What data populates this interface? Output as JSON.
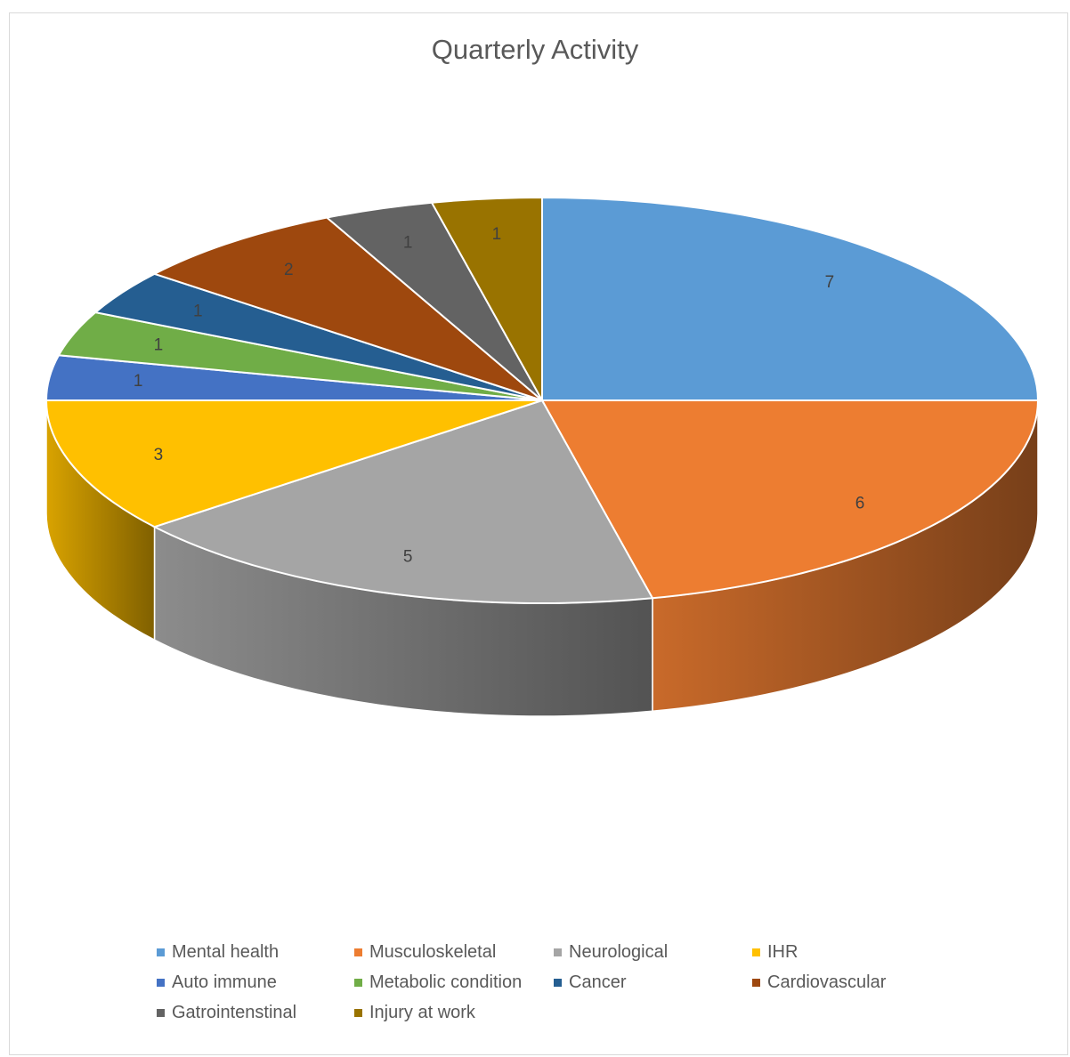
{
  "chart_data": {
    "type": "pie",
    "title": "Quarterly Activity",
    "categories": [
      "Mental health",
      "Musculoskeletal",
      "Neurological",
      "IHR",
      "Auto immune",
      "Metabolic condition",
      "Cancer",
      "Cardiovascular",
      "Gatrointenstinal",
      "Injury at work"
    ],
    "values": [
      7,
      6,
      5,
      3,
      1,
      1,
      1,
      2,
      1,
      1
    ],
    "colors": [
      "#5b9bd5",
      "#ed7d31",
      "#a5a5a5",
      "#ffc000",
      "#4472c4",
      "#70ad47",
      "#255e91",
      "#9e480e",
      "#636363",
      "#997300"
    ],
    "data_labels": [
      "7",
      "6",
      "5",
      "3",
      "1",
      "1",
      "1",
      "2",
      "1",
      "1"
    ],
    "style": "3d",
    "legend_position": "bottom"
  }
}
